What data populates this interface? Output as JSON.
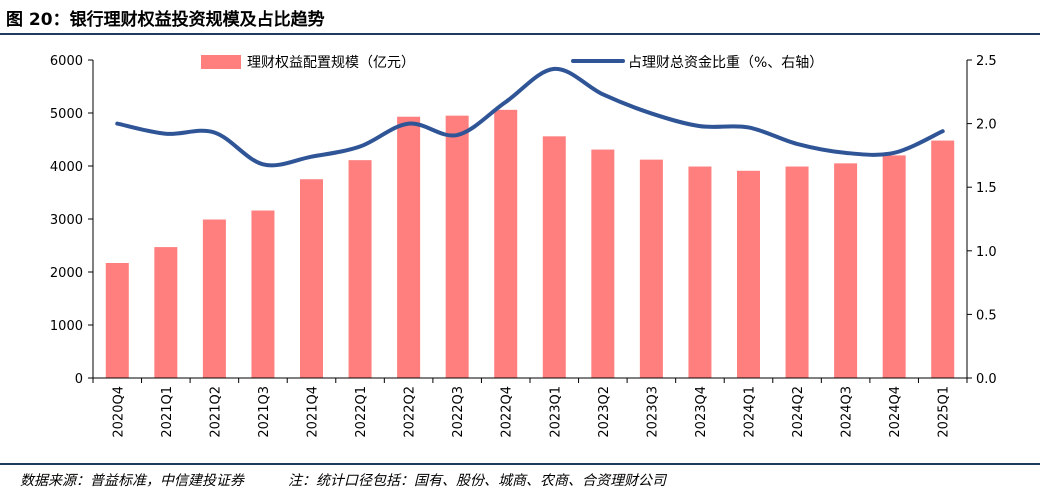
{
  "title": "图 20：银行理财权益投资规模及占比趋势",
  "footer": {
    "source": "数据来源：普益标准，中信建投证券",
    "note": "注：统计口径包括：国有、股份、城商、农商、合资理财公司"
  },
  "colors": {
    "bar": "#ff7f7f",
    "line": "#2f5597",
    "rule": "#1f3a5f"
  },
  "chart_data": {
    "type": "bar+line",
    "categories": [
      "2020Q4",
      "2021Q1",
      "2021Q2",
      "2021Q3",
      "2021Q4",
      "2022Q1",
      "2022Q2",
      "2022Q3",
      "2022Q4",
      "2023Q1",
      "2023Q2",
      "2023Q3",
      "2023Q4",
      "2024Q1",
      "2024Q2",
      "2024Q3",
      "2024Q4",
      "2025Q1"
    ],
    "series": [
      {
        "name": "理财权益配置规模（亿元）",
        "type": "bar",
        "axis": "left",
        "values": [
          2170,
          2470,
          2990,
          3160,
          3750,
          4110,
          4930,
          4950,
          5060,
          4560,
          4310,
          4120,
          3990,
          3910,
          3990,
          4050,
          4200,
          4480
        ]
      },
      {
        "name": "占理财总资金比重（%、右轴）",
        "type": "line",
        "axis": "right",
        "values": [
          2.0,
          1.92,
          1.93,
          1.68,
          1.74,
          1.82,
          2.0,
          1.91,
          2.17,
          2.43,
          2.23,
          2.08,
          1.98,
          1.97,
          1.84,
          1.77,
          1.77,
          1.94
        ]
      }
    ],
    "y_left": {
      "min": 0,
      "max": 6000,
      "ticks": [
        "0",
        "1000",
        "2000",
        "3000",
        "4000",
        "5000",
        "6000"
      ]
    },
    "y_right": {
      "min": 0,
      "max": 2.5,
      "ticks": [
        "0.0",
        "0.5",
        "1.0",
        "1.5",
        "2.0",
        "2.5"
      ]
    },
    "legend": "top",
    "grid": false
  }
}
